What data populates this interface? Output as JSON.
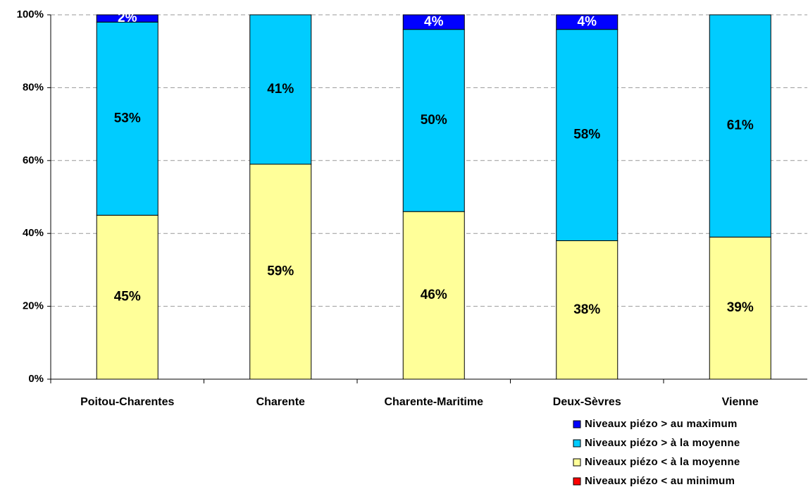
{
  "chart_data": {
    "type": "stacked_bar_percent",
    "categories": [
      "Poitou-Charentes",
      "Charente",
      "Charente-Maritime",
      "Deux-Sèvres",
      "Vienne"
    ],
    "series": [
      {
        "name": "Niveaux piézo < au minimum",
        "color": "#ff0000",
        "label_color": "#000000",
        "values": [
          0,
          0,
          0,
          0,
          0
        ],
        "value_labels": [
          null,
          null,
          null,
          null,
          null
        ]
      },
      {
        "name": "Niveaux piézo < à la moyenne",
        "color": "#ffff99",
        "label_color": "#000000",
        "values": [
          45,
          59,
          46,
          38,
          39
        ],
        "value_labels": [
          "45%",
          "59%",
          "46%",
          "38%",
          "39%"
        ]
      },
      {
        "name": "Niveaux piézo > à la moyenne",
        "color": "#00ccff",
        "label_color": "#000000",
        "values": [
          53,
          41,
          50,
          58,
          61
        ],
        "value_labels": [
          "53%",
          "41%",
          "50%",
          "58%",
          "61%"
        ]
      },
      {
        "name": "Niveaux piézo > au maximum",
        "color": "#0000ff",
        "label_color": "#ffffff",
        "values": [
          2,
          0,
          4,
          4,
          0
        ],
        "value_labels": [
          "2%",
          null,
          "4%",
          "4%",
          null
        ]
      }
    ],
    "ylim": [
      0,
      100
    ],
    "yticks": [
      {
        "value": 0,
        "label": "0%"
      },
      {
        "value": 20,
        "label": "20%"
      },
      {
        "value": 40,
        "label": "40%"
      },
      {
        "value": 60,
        "label": "60%"
      },
      {
        "value": 80,
        "label": "80%"
      },
      {
        "value": 100,
        "label": "100%"
      }
    ],
    "grid": true
  }
}
